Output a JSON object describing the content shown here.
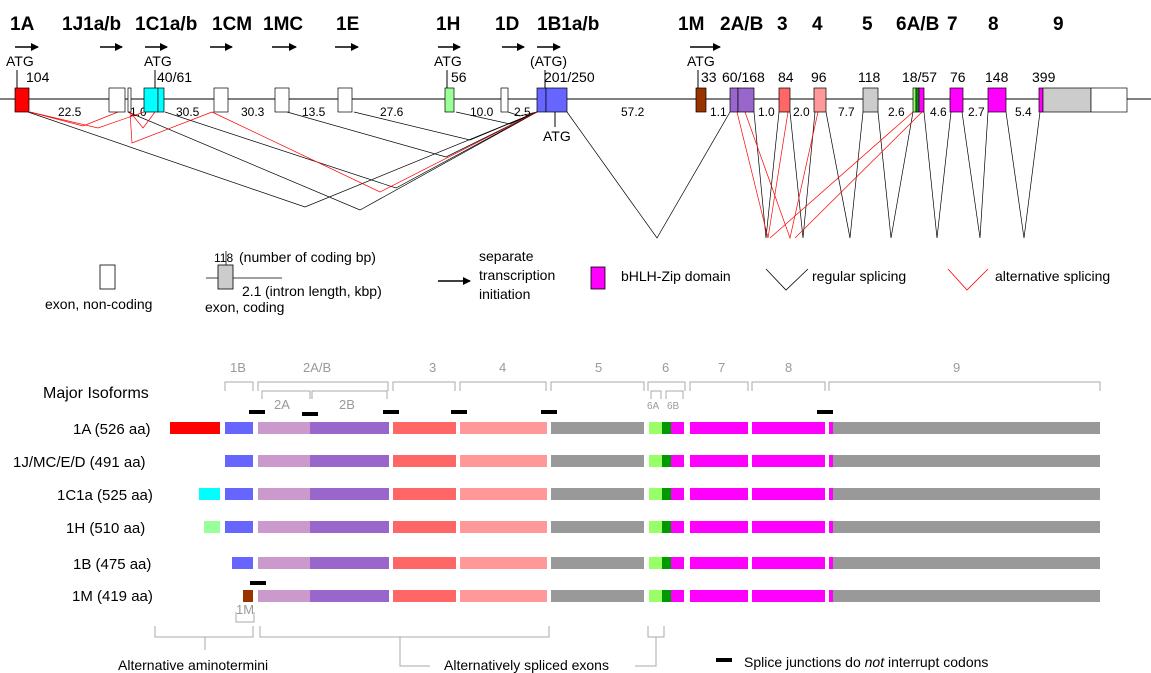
{
  "gene": {
    "exon_headers": [
      "1A",
      "1J1a/b",
      "1C1a/b",
      "1CM",
      "1MC",
      "1E",
      "1H",
      "1D",
      "1B1a/b",
      "1M",
      "2A/B",
      "3",
      "4",
      "5",
      "6A/B",
      "7",
      "8",
      "9"
    ],
    "atg_labels": [
      "ATG",
      "ATG",
      "ATG",
      "(ATG)",
      "ATG"
    ],
    "atg_below": "ATG",
    "coding_bp": [
      "104",
      "40/61",
      "56",
      "201/250",
      "33",
      "60/168",
      "84",
      "96",
      "118",
      "18/57",
      "76",
      "148",
      "399"
    ],
    "intron_kbp": [
      "22.5",
      "1.0",
      "30.5",
      "30.3",
      "13.5",
      "27.6",
      "10.0",
      "2.5",
      "57.2",
      "1.1",
      "1.0",
      "2.0",
      "7.7",
      "2.6",
      "4.6",
      "2.7",
      "5.4"
    ]
  },
  "legend": {
    "noncoding": "exon, non-coding",
    "coding_number": "118",
    "coding_number_note": "(number of coding bp)",
    "intron_number": "2.1",
    "intron_note": "(intron length, kbp)",
    "coding": "exon, coding",
    "tss_lines": [
      "separate",
      "transcription",
      "initiation"
    ],
    "bhlh": "bHLH-Zip domain",
    "regular": "regular splicing",
    "alternative": "alternative splicing"
  },
  "colors": {
    "red": "#ff0000",
    "cyan": "#00ffff",
    "green_light": "#99ff99",
    "blue": "#6666ff",
    "brown": "#993300",
    "purple": "#9966cc",
    "lilac": "#cc99cc",
    "salmon": "#ff6666",
    "pink": "#ff9999",
    "gray": "#999999",
    "gray_light": "#cccccc",
    "green": "#99ff66",
    "dkgreen": "#009900",
    "magenta": "#ff00ff",
    "alt_line": "#ff0000"
  },
  "isoforms": {
    "title": "Major Isoforms",
    "section_labels": [
      "1B",
      "2A/B",
      "3",
      "4",
      "5",
      "6",
      "7",
      "8",
      "9"
    ],
    "sub_labels": [
      "2A",
      "2B",
      "6A",
      "6B",
      "1M"
    ],
    "rows": [
      {
        "label": "1A (526 aa)"
      },
      {
        "label": "1J/MC/E/D (491 aa)"
      },
      {
        "label": "1C1a (525 aa)"
      },
      {
        "label": "1H (510 aa)"
      },
      {
        "label": "1B (475 aa)"
      },
      {
        "label": "1M (419 aa)"
      }
    ],
    "footer": {
      "aminotermini": "Alternative aminotermini",
      "alt_exons": "Alternatively spliced exons",
      "junction_prefix": "Splice junctions do ",
      "junction_not": "not",
      "junction_suffix": " interrupt codons"
    }
  }
}
